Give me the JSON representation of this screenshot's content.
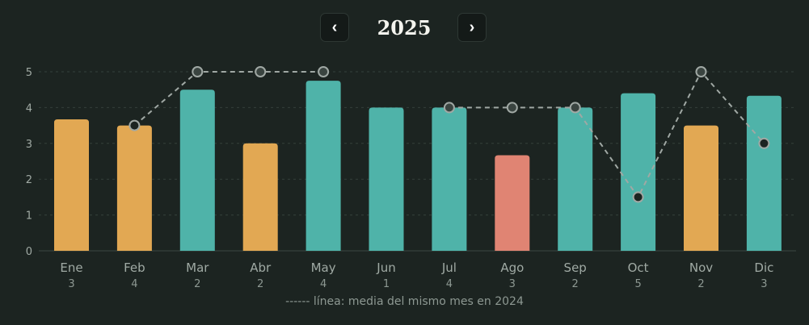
{
  "header": {
    "prev_label": "‹",
    "year": "2025",
    "next_label": "›",
    "prev_icon": "chevron-left-icon",
    "next_icon": "chevron-right-icon"
  },
  "footnote": "------ línea: media del mismo mes en 2024",
  "colors": {
    "background": "#1c2421",
    "teal": "#4fb3a9",
    "orange": "#e2a853",
    "coral": "#e08473",
    "line": "#a0a8a4",
    "grid": "#34403b",
    "tick_text": "#a0aaa4"
  },
  "chart_data": {
    "type": "bar",
    "title": "",
    "xlabel": "",
    "ylabel": "",
    "ylim": [
      0,
      5
    ],
    "yticks": [
      0,
      1,
      2,
      3,
      4,
      5
    ],
    "grid": true,
    "categories": [
      "Ene",
      "Feb",
      "Mar",
      "Abr",
      "May",
      "Jun",
      "Jul",
      "Ago",
      "Sep",
      "Oct",
      "Nov",
      "Dic"
    ],
    "counts": [
      "3",
      "4",
      "2",
      "2",
      "4",
      "1",
      "4",
      "3",
      "2",
      "5",
      "2",
      "3"
    ],
    "values": [
      3.67,
      3.5,
      4.5,
      3.0,
      4.75,
      4.0,
      4.0,
      2.67,
      4.0,
      4.4,
      3.5,
      4.33
    ],
    "bar_colors": [
      "orange",
      "orange",
      "teal",
      "orange",
      "teal",
      "teal",
      "teal",
      "coral",
      "teal",
      "teal",
      "orange",
      "teal"
    ],
    "comparison_line": {
      "style": "dashed",
      "values": [
        null,
        3.5,
        5,
        5,
        5,
        null,
        4,
        4,
        4,
        1.5,
        5,
        3
      ],
      "marker": [
        "",
        "filled",
        "open",
        "open",
        "open",
        "",
        "open",
        "open",
        "open",
        "filled",
        "open",
        "filled"
      ]
    }
  }
}
